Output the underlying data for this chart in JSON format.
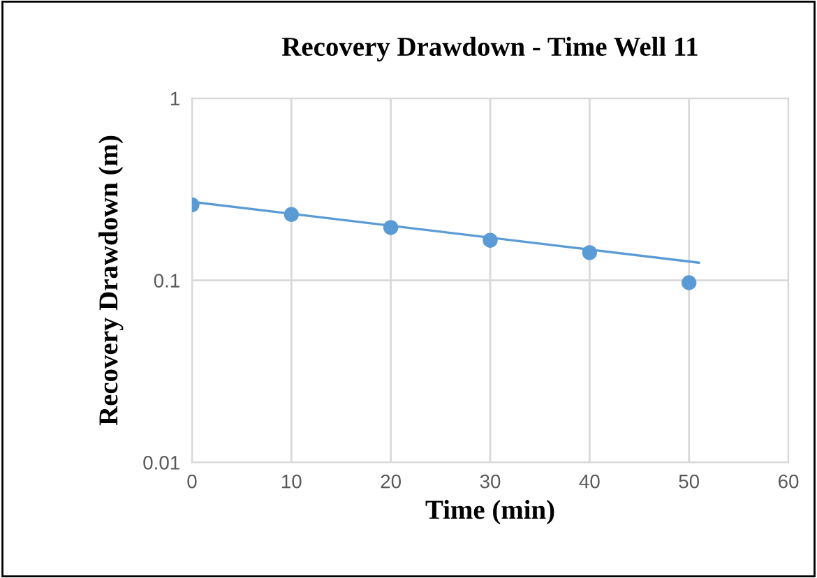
{
  "chart_data": {
    "type": "scatter",
    "title": "Recovery Drawdown - Time Well 11",
    "xlabel": "Time (min)",
    "ylabel": "Recovery Drawdown (m)",
    "x": [
      0,
      10,
      20,
      30,
      40,
      50
    ],
    "series": [
      {
        "color": "#5b9bd5",
        "values": [
          0.26,
          0.23,
          0.195,
          0.166,
          0.142,
          0.097
        ],
        "marker": "circle"
      },
      {
        "type": "line",
        "color": "#5b9bd5",
        "x": [
          0,
          51
        ],
        "values": [
          0.27,
          0.125
        ],
        "marker": "none"
      }
    ],
    "log": "y",
    "xlim": [
      0,
      60
    ],
    "xticks": [
      0,
      10,
      20,
      30,
      40,
      50,
      60
    ],
    "ylim": [
      0.01,
      1
    ],
    "yticks": [
      {
        "value": 0.01,
        "label": "0.01"
      },
      {
        "value": 0.1,
        "label": "0.1"
      },
      {
        "value": 1,
        "label": "1"
      }
    ],
    "grid": true
  }
}
